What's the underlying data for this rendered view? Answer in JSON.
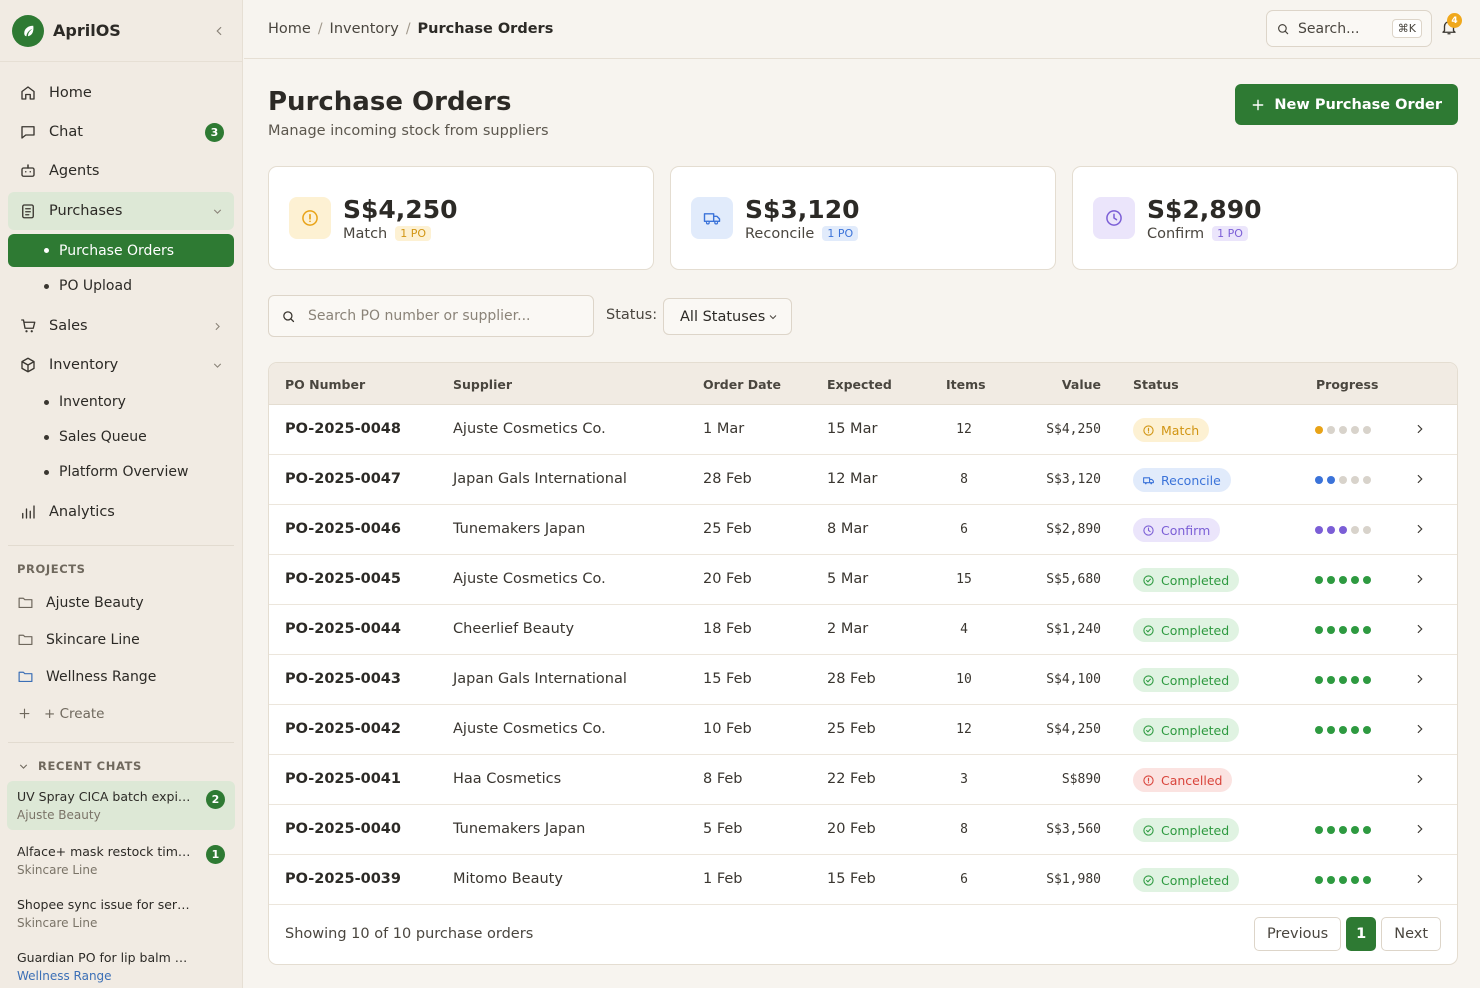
{
  "app": {
    "name": "AprilOS"
  },
  "sidebar": {
    "nav": [
      {
        "label": "Home",
        "icon": "home-icon"
      },
      {
        "label": "Chat",
        "icon": "chat-icon",
        "badge": "3"
      },
      {
        "label": "Agents",
        "icon": "bot-icon"
      }
    ],
    "purchases": {
      "label": "Purchases",
      "sub": [
        "Purchase Orders",
        "PO Upload"
      ]
    },
    "sales": {
      "label": "Sales"
    },
    "inventory": {
      "label": "Inventory",
      "sub": [
        "Inventory",
        "Sales Queue",
        "Platform Overview"
      ]
    },
    "analytics": {
      "label": "Analytics"
    },
    "projects_label": "PROJECTS",
    "projects": [
      "Ajuste Beauty",
      "Skincare Line",
      "Wellness Range"
    ],
    "create_label": "+ Create",
    "recent_label": "RECENT CHATS",
    "recent": [
      {
        "title": "UV Spray CICA batch expiry...",
        "project": "Ajuste Beauty",
        "badge": "2"
      },
      {
        "title": "Alface+ mask restock timel...",
        "project": "Skincare Line",
        "badge": "1"
      },
      {
        "title": "Shopee sync issue for seru...",
        "project": "Skincare Line"
      },
      {
        "title": "Guardian PO for lip balm va...",
        "project": "Wellness Range"
      }
    ]
  },
  "topbar": {
    "breadcrumb": [
      "Home",
      "Inventory",
      "Purchase Orders"
    ],
    "search_placeholder": "Search...",
    "search_shortcut": "⌘K",
    "notifications": "4"
  },
  "page": {
    "title": "Purchase Orders",
    "subtitle": "Manage incoming stock from suppliers",
    "new_button": "New Purchase Order"
  },
  "summary": [
    {
      "value": "S$4,250",
      "label": "Match",
      "pill": "1 PO",
      "icon": "alert-circle-icon"
    },
    {
      "value": "S$3,120",
      "label": "Reconcile",
      "pill": "1 PO",
      "icon": "truck-icon"
    },
    {
      "value": "S$2,890",
      "label": "Confirm",
      "pill": "1 PO",
      "icon": "clock-icon"
    }
  ],
  "filters": {
    "search_placeholder": "Search PO number or supplier...",
    "status_label": "Status:",
    "status_value": "All Statuses"
  },
  "table": {
    "headers": [
      "PO Number",
      "Supplier",
      "Order Date",
      "Expected",
      "Items",
      "Value",
      "Status",
      "Progress"
    ],
    "rows": [
      {
        "po": "PO-2025-0048",
        "supplier": "Ajuste Cosmetics Co.",
        "order": "1 Mar",
        "expected": "15 Mar",
        "items": "12",
        "value": "S$4,250",
        "status": "Match",
        "kind": "match",
        "progress": 1
      },
      {
        "po": "PO-2025-0047",
        "supplier": "Japan Gals International",
        "order": "28 Feb",
        "expected": "12 Mar",
        "items": "8",
        "value": "S$3,120",
        "status": "Reconcile",
        "kind": "reconcile",
        "progress": 2
      },
      {
        "po": "PO-2025-0046",
        "supplier": "Tunemakers Japan",
        "order": "25 Feb",
        "expected": "8 Mar",
        "items": "6",
        "value": "S$2,890",
        "status": "Confirm",
        "kind": "confirm",
        "progress": 3
      },
      {
        "po": "PO-2025-0045",
        "supplier": "Ajuste Cosmetics Co.",
        "order": "20 Feb",
        "expected": "5 Mar",
        "items": "15",
        "value": "S$5,680",
        "status": "Completed",
        "kind": "completed",
        "progress": 5
      },
      {
        "po": "PO-2025-0044",
        "supplier": "Cheerlief Beauty",
        "order": "18 Feb",
        "expected": "2 Mar",
        "items": "4",
        "value": "S$1,240",
        "status": "Completed",
        "kind": "completed",
        "progress": 5
      },
      {
        "po": "PO-2025-0043",
        "supplier": "Japan Gals International",
        "order": "15 Feb",
        "expected": "28 Feb",
        "items": "10",
        "value": "S$4,100",
        "status": "Completed",
        "kind": "completed",
        "progress": 5
      },
      {
        "po": "PO-2025-0042",
        "supplier": "Ajuste Cosmetics Co.",
        "order": "10 Feb",
        "expected": "25 Feb",
        "items": "12",
        "value": "S$4,250",
        "status": "Completed",
        "kind": "completed",
        "progress": 5
      },
      {
        "po": "PO-2025-0041",
        "supplier": "Haa Cosmetics",
        "order": "8 Feb",
        "expected": "22 Feb",
        "items": "3",
        "value": "S$890",
        "status": "Cancelled",
        "kind": "cancelled",
        "progress": 0
      },
      {
        "po": "PO-2025-0040",
        "supplier": "Tunemakers Japan",
        "order": "5 Feb",
        "expected": "20 Feb",
        "items": "8",
        "value": "S$3,560",
        "status": "Completed",
        "kind": "completed",
        "progress": 5
      },
      {
        "po": "PO-2025-0039",
        "supplier": "Mitomo Beauty",
        "order": "1 Feb",
        "expected": "15 Feb",
        "items": "6",
        "value": "S$1,980",
        "status": "Completed",
        "kind": "completed",
        "progress": 5
      }
    ],
    "footer": "Showing 10 of 10 purchase orders",
    "pagination": {
      "prev": "Previous",
      "page": "1",
      "next": "Next"
    }
  },
  "colors": {
    "brand": "#2e7a33",
    "match": "#e8a317",
    "reconcile": "#3b73d9",
    "confirm": "#7b5ed6",
    "completed": "#2e9a40",
    "cancelled": "#d9443b"
  }
}
